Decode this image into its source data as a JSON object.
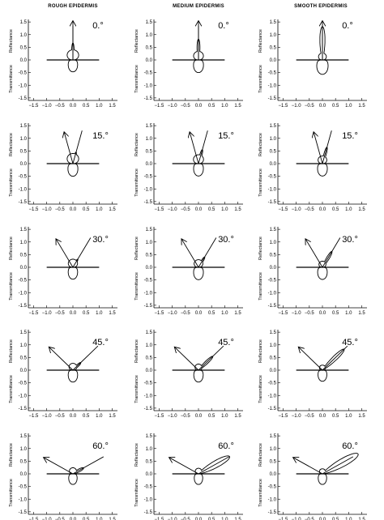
{
  "chart_data": {
    "type": "polar-scatter-lobes",
    "column_titles": [
      "ROUGH EPIDERMIS",
      "MEDIUM EPIDERMIS",
      "SMOOTH EPIDERMIS"
    ],
    "row_angles": [
      "0.°",
      "15.°",
      "30.°",
      "45.°",
      "60.°"
    ],
    "incidence_deg": [
      0,
      15,
      30,
      45,
      60
    ],
    "ylabel_top": "Reflectance",
    "ylabel_bottom": "Transmittance",
    "x_ticks": [
      "−1.5",
      "−1.0",
      "−0.5",
      "0.0",
      "0.5",
      "1.0",
      "1.5"
    ],
    "y_ticks": [
      "1.5",
      "1.0",
      "0.5",
      "0.0",
      "-0.5",
      "-1.0",
      "-1.5"
    ],
    "xlim": [
      -1.7,
      1.7
    ],
    "ylim": [
      -1.6,
      1.6
    ],
    "grid": false,
    "panels": [
      {
        "col": 0,
        "row": 0,
        "spec_dir": 0,
        "spec_len": 0.65,
        "spec_w": 0.11,
        "diffuse": 0.38,
        "trans": 0.45
      },
      {
        "col": 1,
        "row": 0,
        "spec_dir": 0,
        "spec_len": 0.8,
        "spec_w": 0.11,
        "diffuse": 0.32,
        "trans": 0.48
      },
      {
        "col": 2,
        "row": 0,
        "spec_dir": 0,
        "spec_len": 1.3,
        "spec_w": 0.12,
        "diffuse": 0.25,
        "trans": 0.55
      },
      {
        "col": 0,
        "row": 1,
        "spec_dir": -15,
        "spec_len": 0.45,
        "spec_w": 0.13,
        "diffuse": 0.38,
        "trans": 0.48
      },
      {
        "col": 1,
        "row": 1,
        "spec_dir": -15,
        "spec_len": 0.55,
        "spec_w": 0.12,
        "diffuse": 0.33,
        "trans": 0.47
      },
      {
        "col": 2,
        "row": 1,
        "spec_dir": -15,
        "spec_len": 0.65,
        "spec_w": 0.11,
        "diffuse": 0.28,
        "trans": 0.47
      },
      {
        "col": 0,
        "row": 2,
        "spec_dir": -30,
        "spec_len": 0.35,
        "spec_w": 0.14,
        "diffuse": 0.3,
        "trans": 0.45
      },
      {
        "col": 1,
        "row": 2,
        "spec_dir": -30,
        "spec_len": 0.45,
        "spec_w": 0.13,
        "diffuse": 0.28,
        "trans": 0.47
      },
      {
        "col": 2,
        "row": 2,
        "spec_dir": -30,
        "spec_len": 0.7,
        "spec_w": 0.12,
        "diffuse": 0.22,
        "trans": 0.46
      },
      {
        "col": 0,
        "row": 3,
        "spec_dir": -45,
        "spec_len": 0.4,
        "spec_w": 0.16,
        "diffuse": 0.25,
        "trans": 0.45
      },
      {
        "col": 1,
        "row": 3,
        "spec_dir": -45,
        "spec_len": 0.75,
        "spec_w": 0.12,
        "diffuse": 0.22,
        "trans": 0.45
      },
      {
        "col": 2,
        "row": 3,
        "spec_dir": -45,
        "spec_len": 1.15,
        "spec_w": 0.12,
        "diffuse": 0.18,
        "trans": 0.42
      },
      {
        "col": 0,
        "row": 4,
        "spec_dir": -60,
        "spec_len": 0.45,
        "spec_w": 0.18,
        "diffuse": 0.22,
        "trans": 0.4
      },
      {
        "col": 1,
        "row": 4,
        "spec_dir": -60,
        "spec_len": 1.35,
        "spec_w": 0.16,
        "diffuse": 0.2,
        "trans": 0.4
      },
      {
        "col": 2,
        "row": 4,
        "spec_dir": -60,
        "spec_len": 1.55,
        "spec_w": 0.16,
        "diffuse": 0.18,
        "trans": 0.4
      }
    ]
  }
}
